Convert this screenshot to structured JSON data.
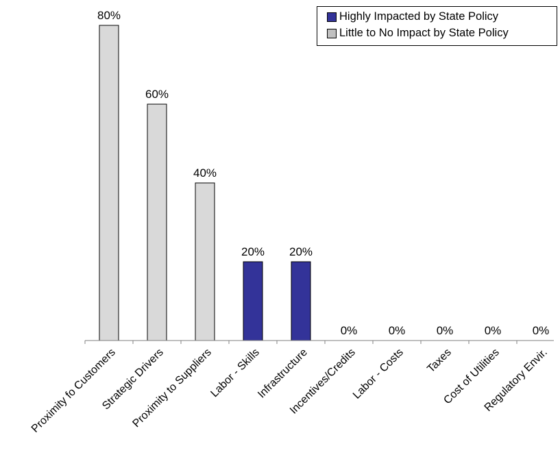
{
  "chart_data": {
    "type": "bar",
    "categories": [
      "Proximity fo Customers",
      "Strategic Drivers",
      "Proximity to Suppliers",
      "Labor - Skills",
      "Infrastructure",
      "Incentives/Credits",
      "Labor - Costs",
      "Taxes",
      "Cost of Utilities",
      "Regulatory Envir."
    ],
    "values": [
      80,
      60,
      40,
      20,
      20,
      0,
      0,
      0,
      0,
      0
    ],
    "value_labels": [
      "80%",
      "60%",
      "40%",
      "20%",
      "20%",
      "0%",
      "0%",
      "0%",
      "0%",
      "0%"
    ],
    "groups": [
      "Little to No Impact by State Policy",
      "Little to No Impact by State Policy",
      "Little to No Impact by State Policy",
      "Highly Impacted by State Policy",
      "Highly Impacted by State Policy",
      "Little to No Impact by State Policy",
      "Little to No Impact by State Policy",
      "Little to No Impact by State Policy",
      "Little to No Impact by State Policy",
      "Little to No Impact by State Policy"
    ],
    "series": [
      {
        "name": "Highly Impacted by State Policy",
        "color": "#333399"
      },
      {
        "name": "Little to No Impact by State Policy",
        "color": "#d9d9d9"
      }
    ],
    "ylim": [
      0,
      80
    ],
    "grid": false,
    "legend_position": "top-right",
    "title": "",
    "xlabel": "",
    "ylabel": ""
  }
}
